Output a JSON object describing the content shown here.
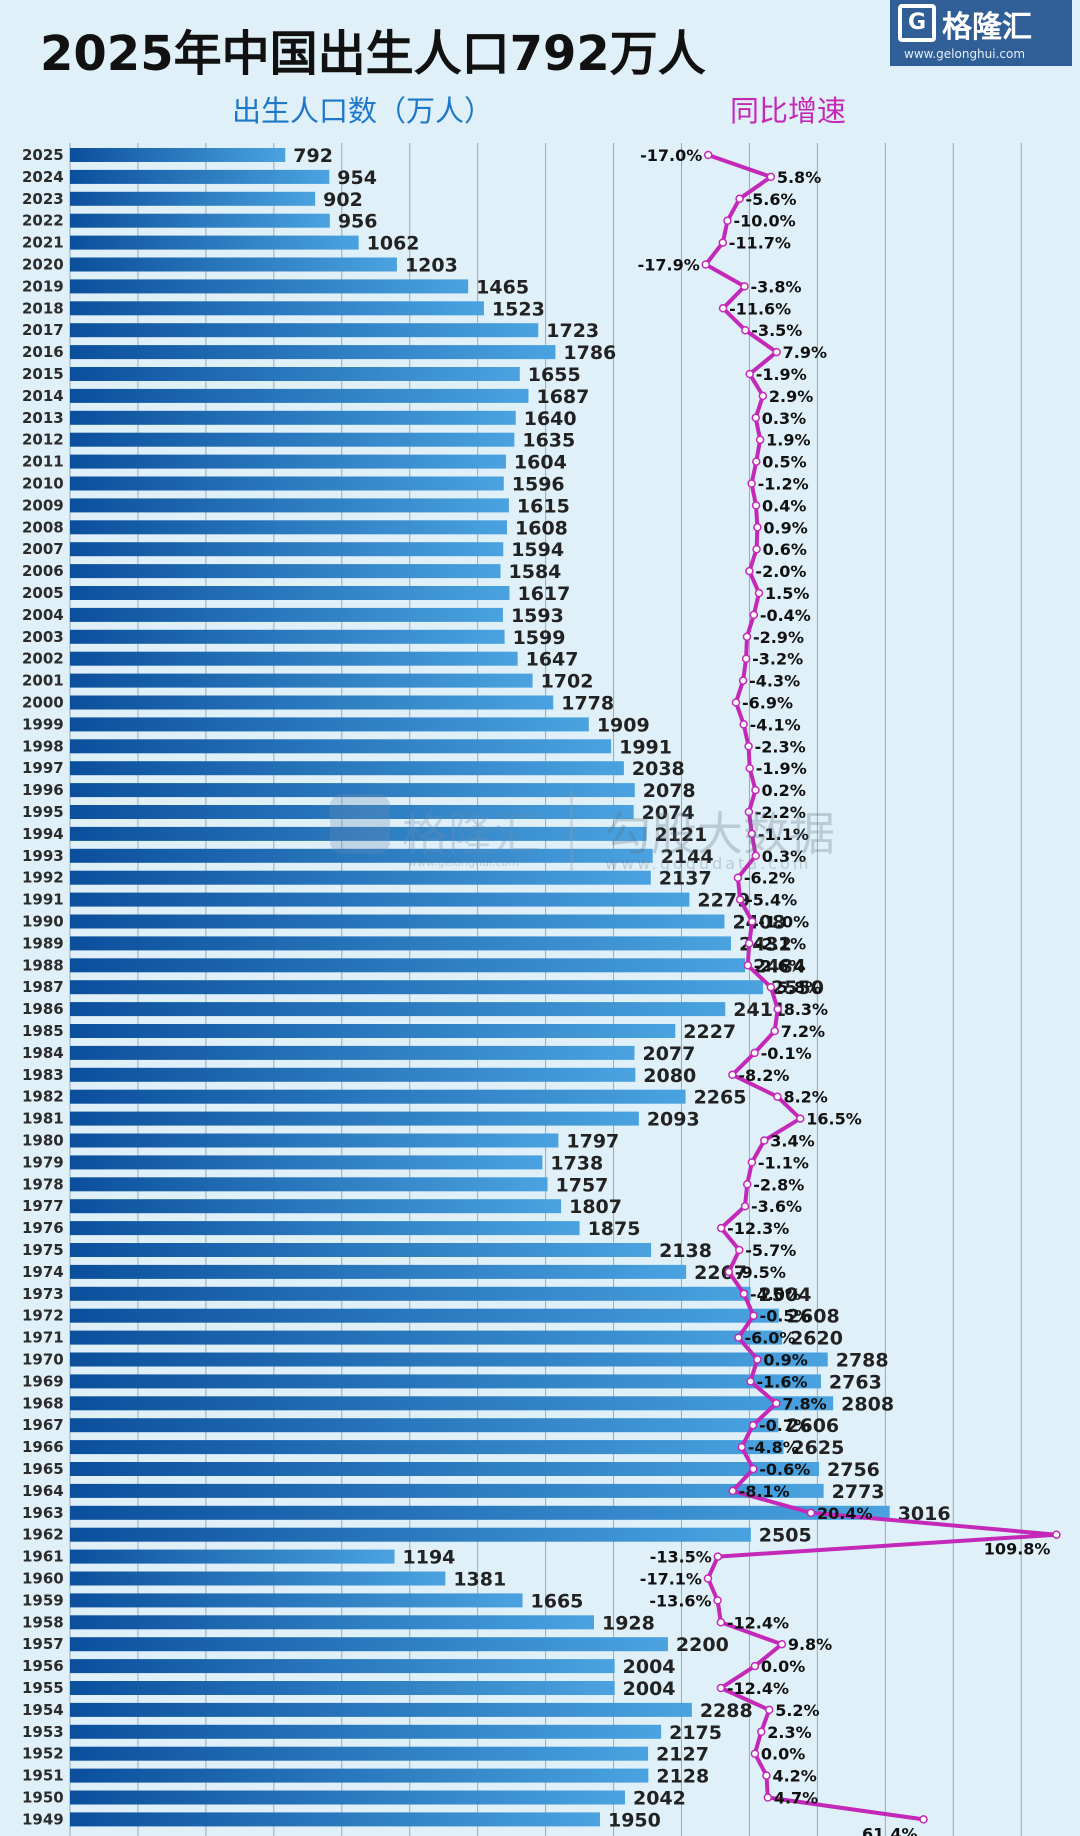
{
  "header": {
    "title": "2025年中国出生人口792万人",
    "legend_births": "出生人口数（万人）",
    "legend_growth": "同比增速"
  },
  "logo": {
    "name": "格隆汇",
    "url": "www.gelonghui.com"
  },
  "watermark": {
    "brand": "格隆汇",
    "brand_url": "www.gelonghui.com",
    "name": "勾股大数据",
    "url": "www.gogudata.com"
  },
  "colors": {
    "bar_dark": "#0b4f9c",
    "bar_light": "#4aa3e0",
    "line": "#c428b8",
    "background": "#dff0f8",
    "grid": "#9aa8b4"
  },
  "chart_data": {
    "type": "bar",
    "title": "2025年中国出生人口792万人",
    "orientation": "horizontal",
    "categories": [
      "2025",
      "2024",
      "2023",
      "2022",
      "2021",
      "2020",
      "2019",
      "2018",
      "2017",
      "2016",
      "2015",
      "2014",
      "2013",
      "2012",
      "2011",
      "2010",
      "2009",
      "2008",
      "2007",
      "2006",
      "2005",
      "2004",
      "2003",
      "2002",
      "2001",
      "2000",
      "1999",
      "1998",
      "1997",
      "1996",
      "1995",
      "1994",
      "1993",
      "1992",
      "1991",
      "1990",
      "1989",
      "1988",
      "1987",
      "1986",
      "1985",
      "1984",
      "1983",
      "1982",
      "1981",
      "1980",
      "1979",
      "1978",
      "1977",
      "1976",
      "1975",
      "1974",
      "1973",
      "1972",
      "1971",
      "1970",
      "1969",
      "1968",
      "1967",
      "1966",
      "1965",
      "1964",
      "1963",
      "1962",
      "1961",
      "1960",
      "1959",
      "1958",
      "1957",
      "1956",
      "1955",
      "1954",
      "1953",
      "1952",
      "1951",
      "1950",
      "1949"
    ],
    "series": [
      {
        "name": "出生人口数（万人）",
        "type": "bar",
        "values": [
          792,
          954,
          902,
          956,
          1062,
          1203,
          1465,
          1523,
          1723,
          1786,
          1655,
          1687,
          1640,
          1635,
          1604,
          1596,
          1615,
          1608,
          1594,
          1584,
          1617,
          1593,
          1599,
          1647,
          1702,
          1778,
          1909,
          1991,
          2038,
          2078,
          2074,
          2121,
          2144,
          2137,
          2279,
          2408,
          2432,
          2484,
          2550,
          2411,
          2227,
          2077,
          2080,
          2265,
          2093,
          1797,
          1738,
          1757,
          1807,
          1875,
          2138,
          2267,
          2504,
          2608,
          2620,
          2788,
          2763,
          2808,
          2606,
          2625,
          2756,
          2773,
          3016,
          2505,
          1194,
          1381,
          1665,
          1928,
          2200,
          2004,
          2004,
          2288,
          2175,
          2127,
          2128,
          2042,
          1950
        ]
      },
      {
        "name": "同比增速",
        "type": "line",
        "unit": "%",
        "values": [
          -17.0,
          5.8,
          -5.6,
          -10.0,
          -11.7,
          -17.9,
          -3.8,
          -11.6,
          -3.5,
          7.9,
          -1.9,
          2.9,
          0.3,
          1.9,
          0.5,
          -1.2,
          0.4,
          0.9,
          0.6,
          -2.0,
          1.5,
          -0.4,
          -2.9,
          -3.2,
          -4.3,
          -6.9,
          -4.1,
          -2.3,
          -1.9,
          0.2,
          -2.2,
          -1.1,
          0.3,
          -6.2,
          -5.4,
          -1.0,
          -2.1,
          -2.6,
          5.8,
          8.3,
          7.2,
          -0.1,
          -8.2,
          8.2,
          16.5,
          3.4,
          -1.1,
          -2.8,
          -3.6,
          -12.3,
          -5.7,
          -9.5,
          -4.0,
          -0.5,
          -6.0,
          0.9,
          -1.6,
          7.8,
          -0.7,
          -4.8,
          -0.6,
          -8.1,
          20.4,
          109.8,
          -13.5,
          -17.1,
          -13.6,
          -12.4,
          9.8,
          0.0,
          -12.4,
          5.2,
          2.3,
          0.0,
          4.2,
          4.7,
          61.4
        ],
        "labels": [
          "-17.0%",
          "5.8%",
          "-5.6%",
          "-10.0%",
          "-11.7%",
          "-17.9%",
          "-3.8%",
          "-11.6%",
          "-3.5%",
          "7.9%",
          "-1.9%",
          "2.9%",
          "0.3%",
          "1.9%",
          "0.5%",
          "-1.2%",
          "0.4%",
          "0.9%",
          "0.6%",
          "-2.0%",
          "1.5%",
          "-0.4%",
          "-2.9%",
          "-3.2%",
          "-4.3%",
          "-6.9%",
          "-4.1%",
          "-2.3%",
          "-1.9%",
          "0.2%",
          "-2.2%",
          "-1.1%",
          "0.3%",
          "-6.2%",
          "-5.4%",
          "-1.0%",
          "-2.1%",
          "-2.6%",
          "5.8%",
          "8.3%",
          "7.2%",
          "-0.1%",
          "-8.2%",
          "8.2%",
          "16.5%",
          "3.4%",
          "-1.1%",
          "-2.8%",
          "-3.6%",
          "-12.3%",
          "-5.7%",
          "-9.5%",
          "-4.0%",
          "-0.5%",
          "-6.0%",
          "0.9%",
          "-1.6%",
          "7.8%",
          "-0.7%",
          "-4.8%",
          "-0.6%",
          "-8.1%",
          "20.4%",
          "109.8%",
          "-13.5%",
          "-17.1%",
          "-13.6%",
          "-12.4%",
          "9.8%",
          "0.0%",
          "-12.4%",
          "5.2%",
          "2.3%",
          "0.0%",
          "4.2%",
          "4.7%",
          "61.4%"
        ]
      }
    ],
    "xlim": [
      0,
      3650
    ],
    "growth_range": [
      -20,
      110
    ],
    "xlabel": "",
    "ylabel": "",
    "grid": true
  }
}
